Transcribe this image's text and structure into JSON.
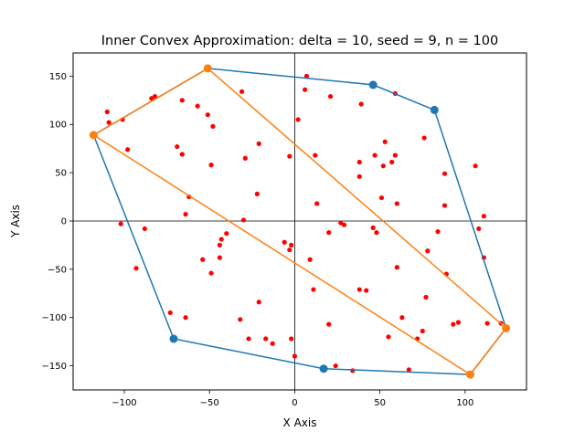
{
  "chart_data": {
    "type": "scatter",
    "title": "Inner Convex Approximation: delta = 10, seed = 9, n = 100",
    "xlabel": "X Axis",
    "ylabel": "Y Axis",
    "xlim": [
      -130,
      136
    ],
    "ylim": [
      -175,
      174
    ],
    "x_ticks": [
      -100,
      -50,
      0,
      50,
      100
    ],
    "y_ticks": [
      -150,
      -100,
      -50,
      0,
      50,
      100,
      150
    ],
    "grid": false,
    "reference_lines": {
      "x": 0,
      "y": 0,
      "color": "#000000"
    },
    "points": {
      "color": "#ff0000",
      "values": [
        [
          -110,
          113
        ],
        [
          -109,
          102
        ],
        [
          -101,
          105
        ],
        [
          -98,
          74
        ],
        [
          -84,
          127
        ],
        [
          -82,
          129
        ],
        [
          -66,
          125
        ],
        [
          -57,
          119
        ],
        [
          -51,
          110
        ],
        [
          -48,
          98
        ],
        [
          -31,
          134
        ],
        [
          -69,
          77
        ],
        [
          -66,
          69
        ],
        [
          -49,
          58
        ],
        [
          -29,
          65
        ],
        [
          -21,
          80
        ],
        [
          -62,
          25
        ],
        [
          -22,
          28
        ],
        [
          -64,
          7
        ],
        [
          -102,
          -3
        ],
        [
          -88,
          -8
        ],
        [
          -93,
          -49
        ],
        [
          -73,
          -95
        ],
        [
          -64,
          -100
        ],
        [
          -44,
          -25
        ],
        [
          -43,
          -19
        ],
        [
          -40,
          -13
        ],
        [
          -54,
          -40
        ],
        [
          -49,
          -54
        ],
        [
          -44,
          -38
        ],
        [
          -32,
          -102
        ],
        [
          -27,
          -122
        ],
        [
          -21,
          -84
        ],
        [
          -17,
          -122
        ],
        [
          -13,
          -127
        ],
        [
          -6,
          -22
        ],
        [
          -2,
          -25
        ],
        [
          -2,
          -122
        ],
        [
          0,
          -140
        ],
        [
          -3,
          -30
        ],
        [
          7,
          150
        ],
        [
          6,
          136
        ],
        [
          2,
          105
        ],
        [
          -3,
          67
        ],
        [
          21,
          129
        ],
        [
          39,
          121
        ],
        [
          12,
          68
        ],
        [
          13,
          18
        ],
        [
          20,
          -12
        ],
        [
          27,
          -2
        ],
        [
          29,
          -4
        ],
        [
          9,
          -40
        ],
        [
          11,
          -71
        ],
        [
          20,
          -107
        ],
        [
          24,
          -150
        ],
        [
          34,
          -155
        ],
        [
          38,
          61
        ],
        [
          38,
          46
        ],
        [
          47,
          68
        ],
        [
          52,
          57
        ],
        [
          53,
          82
        ],
        [
          57,
          61
        ],
        [
          59,
          68
        ],
        [
          59,
          132
        ],
        [
          51,
          24
        ],
        [
          60,
          18
        ],
        [
          76,
          86
        ],
        [
          46,
          -7
        ],
        [
          48,
          -12
        ],
        [
          42,
          -72
        ],
        [
          38,
          -71
        ],
        [
          60,
          -48
        ],
        [
          63,
          -100
        ],
        [
          55,
          -120
        ],
        [
          67,
          -154
        ],
        [
          72,
          -122
        ],
        [
          77,
          -79
        ],
        [
          78,
          -31
        ],
        [
          84,
          -11
        ],
        [
          75,
          -114
        ],
        [
          88,
          49
        ],
        [
          88,
          16
        ],
        [
          89,
          -55
        ],
        [
          106,
          57
        ],
        [
          108,
          -8
        ],
        [
          111,
          5
        ],
        [
          111,
          -38
        ],
        [
          93,
          -107
        ],
        [
          96,
          -105
        ],
        [
          113,
          -106
        ],
        [
          121,
          -106
        ],
        [
          -30,
          1
        ]
      ]
    },
    "outer_polygon": {
      "color": "#1f77b4",
      "vertices": [
        [
          -118,
          89
        ],
        [
          -51,
          158
        ],
        [
          46,
          141
        ],
        [
          82,
          115
        ],
        [
          124,
          -111
        ],
        [
          103,
          -159
        ],
        [
          17,
          -153
        ],
        [
          -71,
          -122
        ],
        [
          -118,
          89
        ]
      ],
      "markers": [
        [
          46,
          141
        ],
        [
          82,
          115
        ],
        [
          17,
          -153
        ],
        [
          -71,
          -122
        ]
      ]
    },
    "inner_polygon": {
      "color": "#ff7f0e",
      "vertices": [
        [
          -118,
          89
        ],
        [
          -51,
          158
        ],
        [
          124,
          -111
        ],
        [
          103,
          -159
        ],
        [
          -118,
          89
        ]
      ],
      "markers": [
        [
          -118,
          89
        ],
        [
          -51,
          158
        ],
        [
          124,
          -111
        ],
        [
          103,
          -159
        ]
      ]
    }
  }
}
